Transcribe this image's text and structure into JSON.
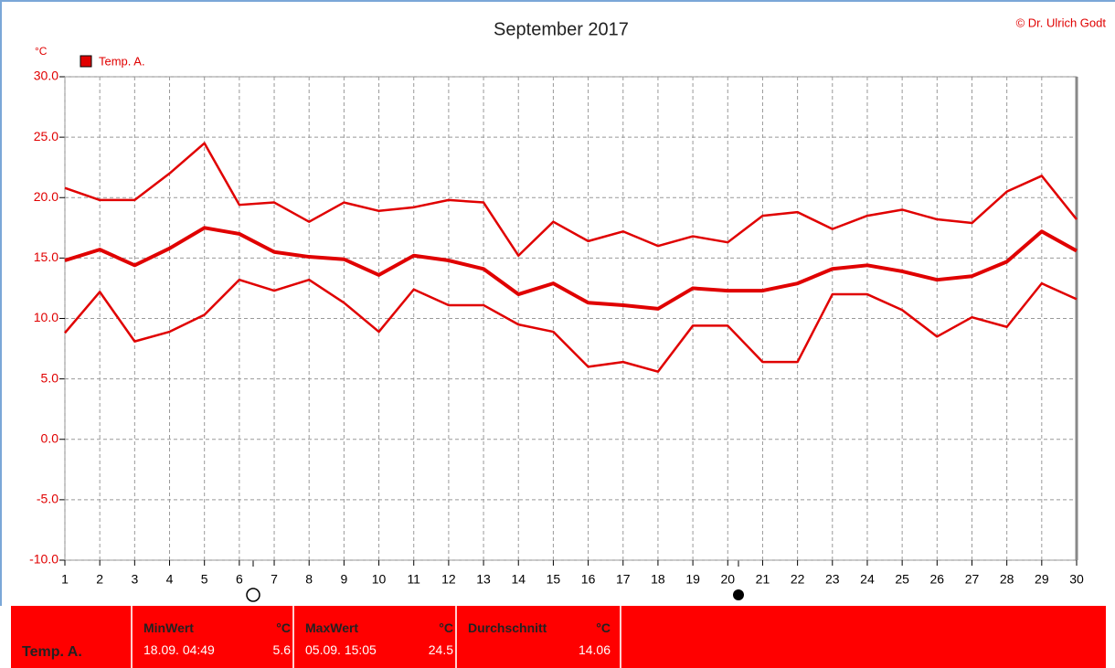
{
  "chart_data": {
    "type": "line",
    "title": "September 2017",
    "credit": "© Dr. Ulrich Godt",
    "y_unit": "°C",
    "legend_label": "Temp. A.",
    "legend_color": "#e00000",
    "x": [
      1,
      2,
      3,
      4,
      5,
      6,
      7,
      8,
      9,
      10,
      11,
      12,
      13,
      14,
      15,
      16,
      17,
      18,
      19,
      20,
      21,
      22,
      23,
      24,
      25,
      26,
      27,
      28,
      29,
      30
    ],
    "xlim": [
      1,
      30
    ],
    "xticks": [
      1,
      2,
      3,
      4,
      5,
      6,
      7,
      8,
      9,
      10,
      11,
      12,
      13,
      14,
      15,
      16,
      17,
      18,
      19,
      20,
      21,
      22,
      23,
      24,
      25,
      26,
      27,
      28,
      29,
      30
    ],
    "ylim": [
      -10,
      30
    ],
    "yticks": [
      {
        "value": -10,
        "label": "-10.0"
      },
      {
        "value": -5,
        "label": "-5.0"
      },
      {
        "value": 0,
        "label": "0.0"
      },
      {
        "value": 5,
        "label": "5.0"
      },
      {
        "value": 10,
        "label": "10.0"
      },
      {
        "value": 15,
        "label": "15.0"
      },
      {
        "value": 20,
        "label": "20.0"
      },
      {
        "value": 25,
        "label": "25.0"
      },
      {
        "value": 30,
        "label": "30.0"
      }
    ],
    "grid": true,
    "series": [
      {
        "color": "#e00000",
        "width": 2.5,
        "values": [
          20.8,
          19.8,
          19.8,
          22.0,
          24.5,
          19.4,
          19.6,
          18.0,
          19.6,
          18.9,
          19.2,
          19.8,
          19.6,
          15.2,
          18.0,
          16.4,
          17.2,
          16.0,
          16.8,
          16.3,
          18.5,
          18.8,
          17.4,
          18.5,
          19.0,
          18.2,
          17.9,
          20.5,
          21.8,
          18.2
        ]
      },
      {
        "color": "#e00000",
        "width": 4,
        "values": [
          14.8,
          15.7,
          14.4,
          15.8,
          17.5,
          17.0,
          15.5,
          15.1,
          14.9,
          13.6,
          15.2,
          14.8,
          14.1,
          12.0,
          12.9,
          11.3,
          11.1,
          10.8,
          12.5,
          12.3,
          12.3,
          12.9,
          14.1,
          14.4,
          13.9,
          13.2,
          13.5,
          14.7,
          17.2,
          15.6
        ]
      },
      {
        "color": "#e00000",
        "width": 2.5,
        "values": [
          8.8,
          12.2,
          8.1,
          8.9,
          10.3,
          13.2,
          12.3,
          13.2,
          11.3,
          8.9,
          12.4,
          11.1,
          11.1,
          9.5,
          8.9,
          6.0,
          6.4,
          5.6,
          9.4,
          9.4,
          6.4,
          6.4,
          12.0,
          12.0,
          10.7,
          8.5,
          10.1,
          9.3,
          12.9,
          11.6
        ]
      }
    ]
  },
  "stats_table": {
    "row_label": "Temp. A.",
    "cells": [
      {
        "header": "MinWert",
        "unit": "°C",
        "when": "18.09.  04:49",
        "value": 5.6
      },
      {
        "header": "MaxWert",
        "unit": "°C",
        "when": "05.09.  15:05",
        "value": 24.5
      },
      {
        "header": "Durchschnitt",
        "unit": "°C",
        "value": 14.06
      }
    ]
  }
}
